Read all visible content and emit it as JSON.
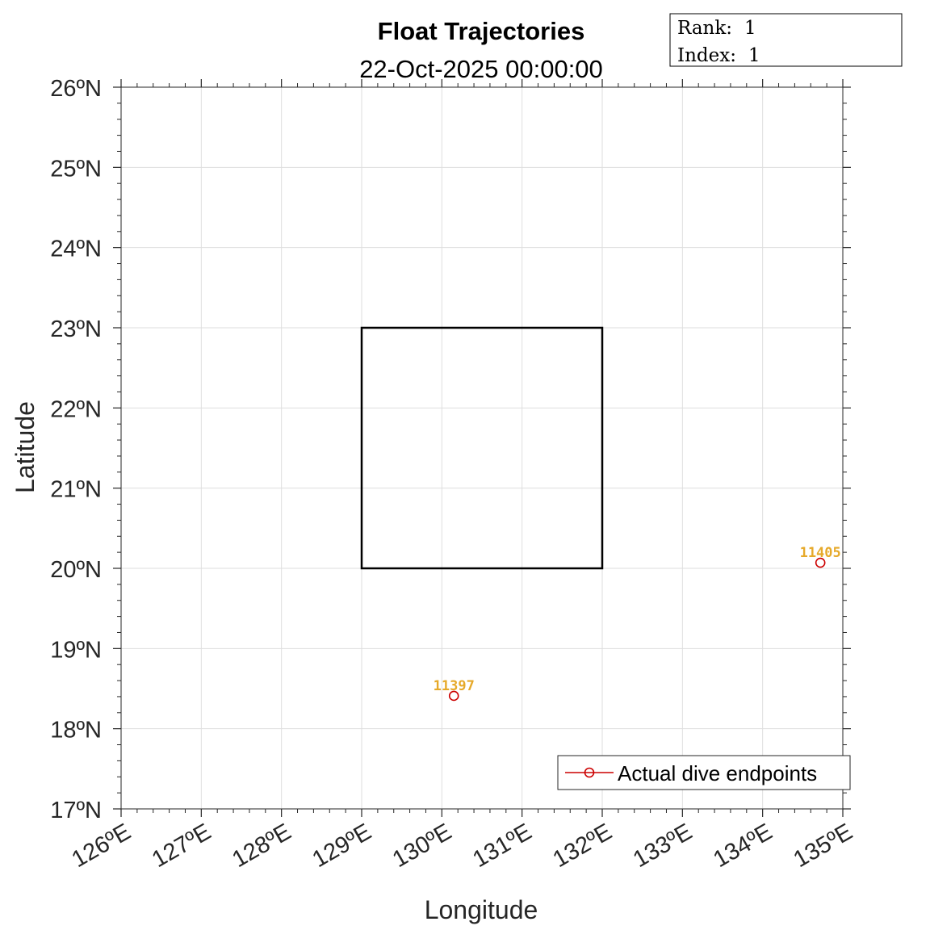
{
  "chart_data": {
    "type": "scatter",
    "title": "Float Trajectories",
    "subtitle": "22-Oct-2025 00:00:00",
    "xlabel": "Longitude",
    "ylabel": "Latitude",
    "xlim": [
      126,
      135
    ],
    "ylim": [
      17,
      26
    ],
    "x_ticks": [
      126,
      127,
      128,
      129,
      130,
      131,
      132,
      133,
      134,
      135
    ],
    "x_tick_labels": [
      "126ºE",
      "127ºE",
      "128ºE",
      "129ºE",
      "130ºE",
      "131ºE",
      "132ºE",
      "133ºE",
      "134ºE",
      "135ºE"
    ],
    "y_ticks": [
      17,
      18,
      19,
      20,
      21,
      22,
      23,
      24,
      25,
      26
    ],
    "y_tick_labels": [
      "17ºN",
      "18ºN",
      "19ºN",
      "20ºN",
      "21ºN",
      "22ºN",
      "23ºN",
      "24ºN",
      "25ºN",
      "26ºN"
    ],
    "grid": true,
    "region_box": {
      "lon": [
        129,
        132
      ],
      "lat": [
        20,
        23
      ],
      "color": "#000000"
    },
    "series": [
      {
        "name": "Actual dive endpoints",
        "color": "#cc0000",
        "marker": "circle",
        "points": [
          {
            "id": "11397",
            "lon": 130.15,
            "lat": 18.41
          },
          {
            "id": "11405",
            "lon": 134.72,
            "lat": 20.07
          }
        ]
      }
    ],
    "point_label_color": "#e6a92a",
    "legend": {
      "placement": "bottom-right",
      "entries": [
        "Actual dive endpoints"
      ]
    }
  },
  "info_box": {
    "rank_label": "Rank:",
    "rank_value": "1",
    "index_label": "Index:",
    "index_value": "1"
  }
}
